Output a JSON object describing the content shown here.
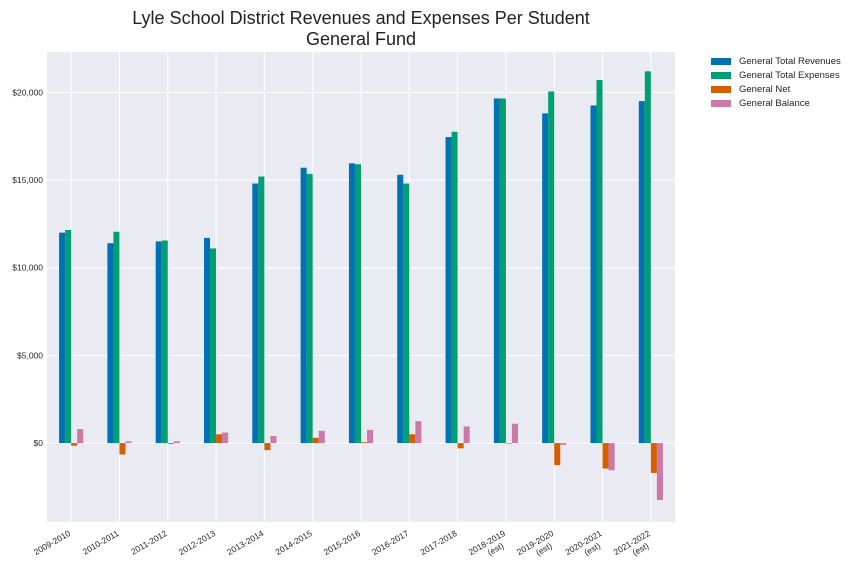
{
  "chart_data": {
    "type": "bar",
    "title_lines": [
      "Lyle School District Revenues and Expenses Per Student",
      "General Fund"
    ],
    "xlabel": "",
    "ylabel": "",
    "ylim": [
      -4500,
      22300
    ],
    "yticks": [
      0,
      5000,
      10000,
      15000,
      20000
    ],
    "ytick_labels": [
      "$0",
      "$5,000",
      "$10,000",
      "$15,000",
      "$20,000"
    ],
    "grid": true,
    "legend_position": "outside-top-right",
    "categories": [
      [
        "2009-2010"
      ],
      [
        "2010-2011"
      ],
      [
        "2011-2012"
      ],
      [
        "2012-2013"
      ],
      [
        "2013-2014"
      ],
      [
        "2014-2015"
      ],
      [
        "2015-2016"
      ],
      [
        "2016-2017"
      ],
      [
        "2017-2018"
      ],
      [
        "2018-2019",
        "(est)"
      ],
      [
        "2019-2020",
        "(est)"
      ],
      [
        "2020-2021",
        "(est)"
      ],
      [
        "2021-2022",
        "(est)"
      ]
    ],
    "series": [
      {
        "name": "General Total Revenues",
        "color": "#0072b2",
        "values": [
          12000,
          11400,
          11500,
          11700,
          14800,
          15700,
          15950,
          15300,
          17450,
          19650,
          18800,
          19250,
          19500
        ]
      },
      {
        "name": "General Total Expenses",
        "color": "#009e73",
        "values": [
          12150,
          12050,
          11550,
          11100,
          15200,
          15350,
          15900,
          14800,
          17750,
          19650,
          20050,
          20700,
          21200
        ]
      },
      {
        "name": "General Net",
        "color": "#d55e00",
        "values": [
          -150,
          -650,
          -50,
          500,
          -400,
          300,
          50,
          500,
          -300,
          0,
          -1250,
          -1450,
          -1700
        ]
      },
      {
        "name": "General Balance",
        "color": "#cc79a7",
        "values": [
          800,
          100,
          100,
          600,
          400,
          700,
          750,
          1250,
          950,
          1100,
          -100,
          -1550,
          -3250
        ]
      }
    ]
  }
}
